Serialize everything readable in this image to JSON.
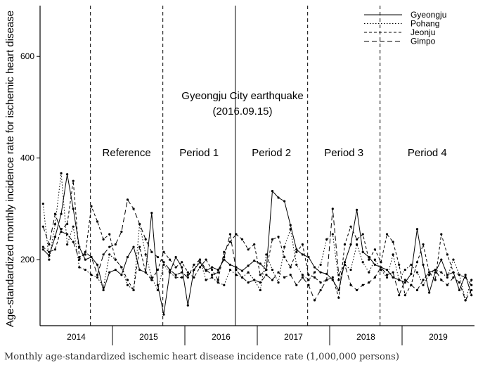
{
  "caption": "Monthly age-standardized ischemic heart disease incidence rate (1,000,000 persons)",
  "chart_data": {
    "type": "line",
    "ylabel": "Age-standardized monthly incidence rate for ischemic heart disease",
    "xlabel": "",
    "ylim": [
      70,
      700
    ],
    "yticks": [
      200,
      400,
      600
    ],
    "year_labels": [
      "2014",
      "2015",
      "2016",
      "2017",
      "2018",
      "2019"
    ],
    "x_start": "2014-01",
    "x_end": "2019-12",
    "series_months": "2014-01 to 2019-12",
    "period_labels": [
      "Reference",
      "Period 1",
      "Period 2",
      "Period 3",
      "Period 4"
    ],
    "period_boundaries": [
      "2014-09",
      "2015-09",
      "2016-09",
      "2017-09",
      "2018-09"
    ],
    "annotation": {
      "line1": "Gyeongju City earthquake",
      "line2": "(2016.09.15)",
      "date": "2016-09"
    },
    "legend_position": "top-right",
    "series": [
      {
        "name": "Gyeongju",
        "dash": "solid",
        "values": [
          220,
          208,
          245,
          290,
          368,
          300,
          225,
          200,
          205,
          190,
          140,
          175,
          180,
          170,
          205,
          225,
          180,
          175,
          292,
          150,
          92,
          175,
          205,
          185,
          110,
          180,
          195,
          178,
          185,
          180,
          200,
          190,
          185,
          178,
          188,
          198,
          192,
          180,
          335,
          322,
          315,
          268,
          220,
          210,
          205,
          185,
          175,
          172,
          160,
          140,
          195,
          230,
          298,
          215,
          205,
          190,
          185,
          180,
          165,
          160,
          155,
          172,
          260,
          190,
          135,
          175,
          200,
          170,
          175,
          140,
          170,
          130
        ]
      },
      {
        "name": "Pohang",
        "dash": "dotted",
        "values": [
          310,
          200,
          270,
          370,
          230,
          265,
          185,
          180,
          170,
          165,
          145,
          210,
          200,
          185,
          150,
          140,
          270,
          210,
          165,
          140,
          190,
          175,
          165,
          165,
          170,
          180,
          200,
          160,
          165,
          155,
          150,
          180,
          170,
          165,
          175,
          160,
          140,
          210,
          180,
          155,
          225,
          260,
          190,
          170,
          160,
          175,
          190,
          240,
          250,
          160,
          190,
          180,
          230,
          195,
          175,
          200,
          180,
          165,
          210,
          160,
          180,
          190,
          175,
          150,
          170,
          180,
          175,
          165,
          200,
          170,
          120,
          160
        ]
      },
      {
        "name": "Jeonju",
        "dash": "dashed",
        "values": [
          225,
          215,
          220,
          260,
          270,
          355,
          205,
          210,
          305,
          275,
          240,
          250,
          200,
          185,
          160,
          140,
          225,
          175,
          160,
          180,
          215,
          200,
          185,
          195,
          175,
          165,
          185,
          200,
          180,
          160,
          215,
          235,
          250,
          240,
          220,
          230,
          170,
          180,
          240,
          245,
          205,
          185,
          215,
          230,
          170,
          165,
          155,
          160,
          165,
          125,
          230,
          265,
          240,
          250,
          200,
          220,
          195,
          250,
          235,
          190,
          130,
          150,
          195,
          230,
          175,
          160,
          250,
          210,
          175,
          170,
          165,
          150
        ]
      },
      {
        "name": "Gimpo",
        "dash": "long-dash",
        "values": [
          265,
          230,
          290,
          255,
          250,
          235,
          200,
          215,
          205,
          170,
          210,
          225,
          230,
          255,
          318,
          300,
          270,
          240,
          215,
          205,
          195,
          180,
          170,
          175,
          165,
          190,
          200,
          180,
          170,
          175,
          205,
          250,
          180,
          165,
          155,
          160,
          155,
          170,
          160,
          175,
          165,
          170,
          150,
          165,
          150,
          120,
          140,
          160,
          300,
          170,
          190,
          150,
          140,
          150,
          155,
          165,
          185,
          170,
          175,
          130,
          160,
          150,
          140,
          160,
          175,
          180,
          160,
          150,
          165,
          155,
          120,
          140
        ]
      }
    ]
  }
}
